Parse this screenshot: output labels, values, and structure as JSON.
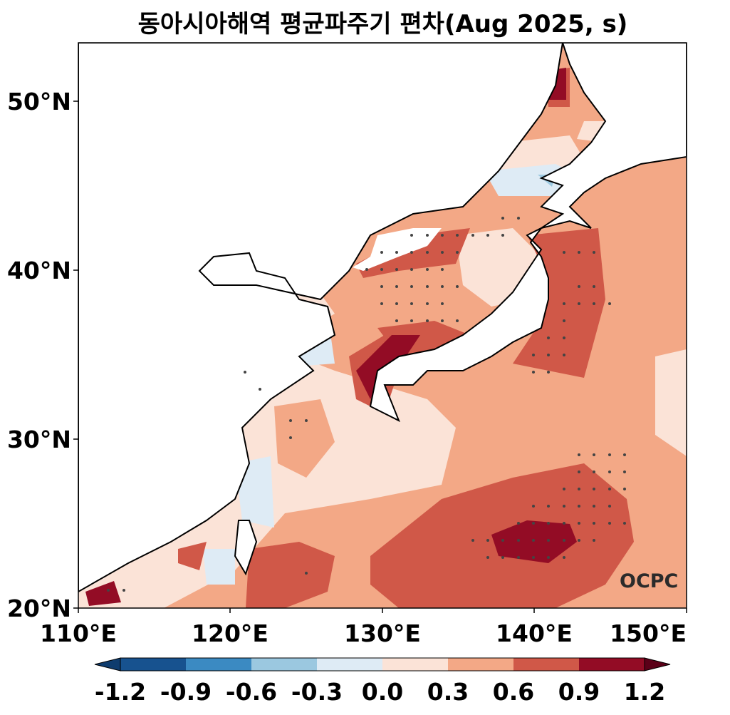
{
  "title": "동아시아해역 평균파주기 편차(Aug 2025, s)",
  "map": {
    "x_ticks": [
      "110°E",
      "120°E",
      "130°E",
      "140°E",
      "150°E"
    ],
    "y_ticks": [
      "20°N",
      "30°N",
      "40°N",
      "50°N"
    ],
    "lon_range": [
      110,
      150
    ],
    "lat_range": [
      20,
      53.5
    ]
  },
  "colorbar": {
    "ticks": [
      "-1.2",
      "-0.9",
      "-0.6",
      "-0.3",
      "0.0",
      "0.3",
      "0.6",
      "0.9",
      "1.2"
    ],
    "colors": [
      "#0e3c6e",
      "#17528f",
      "#3b8ac2",
      "#9bc8e0",
      "#deebf5",
      "#fbe3d7",
      "#f3a886",
      "#d05848",
      "#930c25",
      "#5b0018"
    ]
  },
  "logo": "OCPC"
}
